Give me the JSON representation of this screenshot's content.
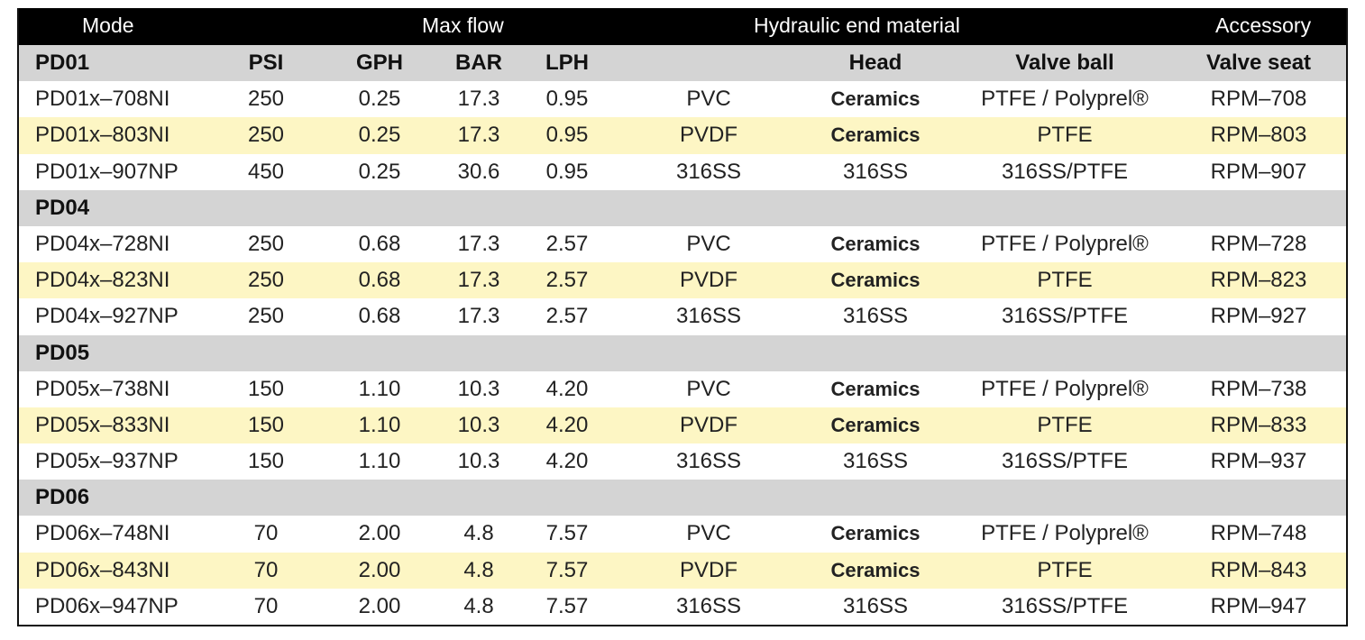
{
  "header": {
    "mode": "Mode",
    "max_flow": "Max flow",
    "hydraulic": "Hydraulic end material",
    "accessory": "Accessory"
  },
  "subheader": {
    "psi": "PSI",
    "gph": "GPH",
    "bar": "BAR",
    "lph": "LPH",
    "head": "Head",
    "valve_ball": "Valve ball",
    "valve_seat": "Valve seat"
  },
  "colors": {
    "header_bg": "#000000",
    "group_bg": "#d4d4d4",
    "highlight_bg": "#fdf6c4"
  },
  "groups": [
    {
      "name": "PD01",
      "rows": [
        {
          "model": "PD01x–708NI",
          "psi": "250",
          "gph": "0.25",
          "bar": "17.3",
          "lph": "0.95",
          "material": "PVC",
          "head": "Ceramics",
          "valve_ball": "PTFE / Polyprel®",
          "valve_seat": "RPM–708"
        },
        {
          "model": "PD01x–803NI",
          "psi": "250",
          "gph": "0.25",
          "bar": "17.3",
          "lph": "0.95",
          "material": "PVDF",
          "head": "Ceramics",
          "valve_ball": "PTFE",
          "valve_seat": "RPM–803"
        },
        {
          "model": "PD01x–907NP",
          "psi": "450",
          "gph": "0.25",
          "bar": "30.6",
          "lph": "0.95",
          "material": "316SS",
          "head": "316SS",
          "valve_ball": "316SS/PTFE",
          "valve_seat": "RPM–907"
        }
      ]
    },
    {
      "name": "PD04",
      "rows": [
        {
          "model": "PD04x–728NI",
          "psi": "250",
          "gph": "0.68",
          "bar": "17.3",
          "lph": "2.57",
          "material": "PVC",
          "head": "Ceramics",
          "valve_ball": "PTFE / Polyprel®",
          "valve_seat": "RPM–728"
        },
        {
          "model": "PD04x–823NI",
          "psi": "250",
          "gph": "0.68",
          "bar": "17.3",
          "lph": "2.57",
          "material": "PVDF",
          "head": "Ceramics",
          "valve_ball": "PTFE",
          "valve_seat": "RPM–823"
        },
        {
          "model": "PD04x–927NP",
          "psi": "250",
          "gph": "0.68",
          "bar": "17.3",
          "lph": "2.57",
          "material": "316SS",
          "head": "316SS",
          "valve_ball": "316SS/PTFE",
          "valve_seat": "RPM–927"
        }
      ]
    },
    {
      "name": "PD05",
      "rows": [
        {
          "model": "PD05x–738NI",
          "psi": "150",
          "gph": "1.10",
          "bar": "10.3",
          "lph": "4.20",
          "material": "PVC",
          "head": "Ceramics",
          "valve_ball": "PTFE / Polyprel®",
          "valve_seat": "RPM–738"
        },
        {
          "model": "PD05x–833NI",
          "psi": "150",
          "gph": "1.10",
          "bar": "10.3",
          "lph": "4.20",
          "material": "PVDF",
          "head": "Ceramics",
          "valve_ball": "PTFE",
          "valve_seat": "RPM–833"
        },
        {
          "model": "PD05x–937NP",
          "psi": "150",
          "gph": "1.10",
          "bar": "10.3",
          "lph": "4.20",
          "material": "316SS",
          "head": "316SS",
          "valve_ball": "316SS/PTFE",
          "valve_seat": "RPM–937"
        }
      ]
    },
    {
      "name": "PD06",
      "rows": [
        {
          "model": "PD06x–748NI",
          "psi": "70",
          "gph": "2.00",
          "bar": "4.8",
          "lph": "7.57",
          "material": "PVC",
          "head": "Ceramics",
          "valve_ball": "PTFE / Polyprel®",
          "valve_seat": "RPM–748"
        },
        {
          "model": "PD06x–843NI",
          "psi": "70",
          "gph": "2.00",
          "bar": "4.8",
          "lph": "7.57",
          "material": "PVDF",
          "head": "Ceramics",
          "valve_ball": "PTFE",
          "valve_seat": "RPM–843"
        },
        {
          "model": "PD06x–947NP",
          "psi": "70",
          "gph": "2.00",
          "bar": "4.8",
          "lph": "7.57",
          "material": "316SS",
          "head": "316SS",
          "valve_ball": "316SS/PTFE",
          "valve_seat": "RPM–947"
        }
      ]
    }
  ]
}
